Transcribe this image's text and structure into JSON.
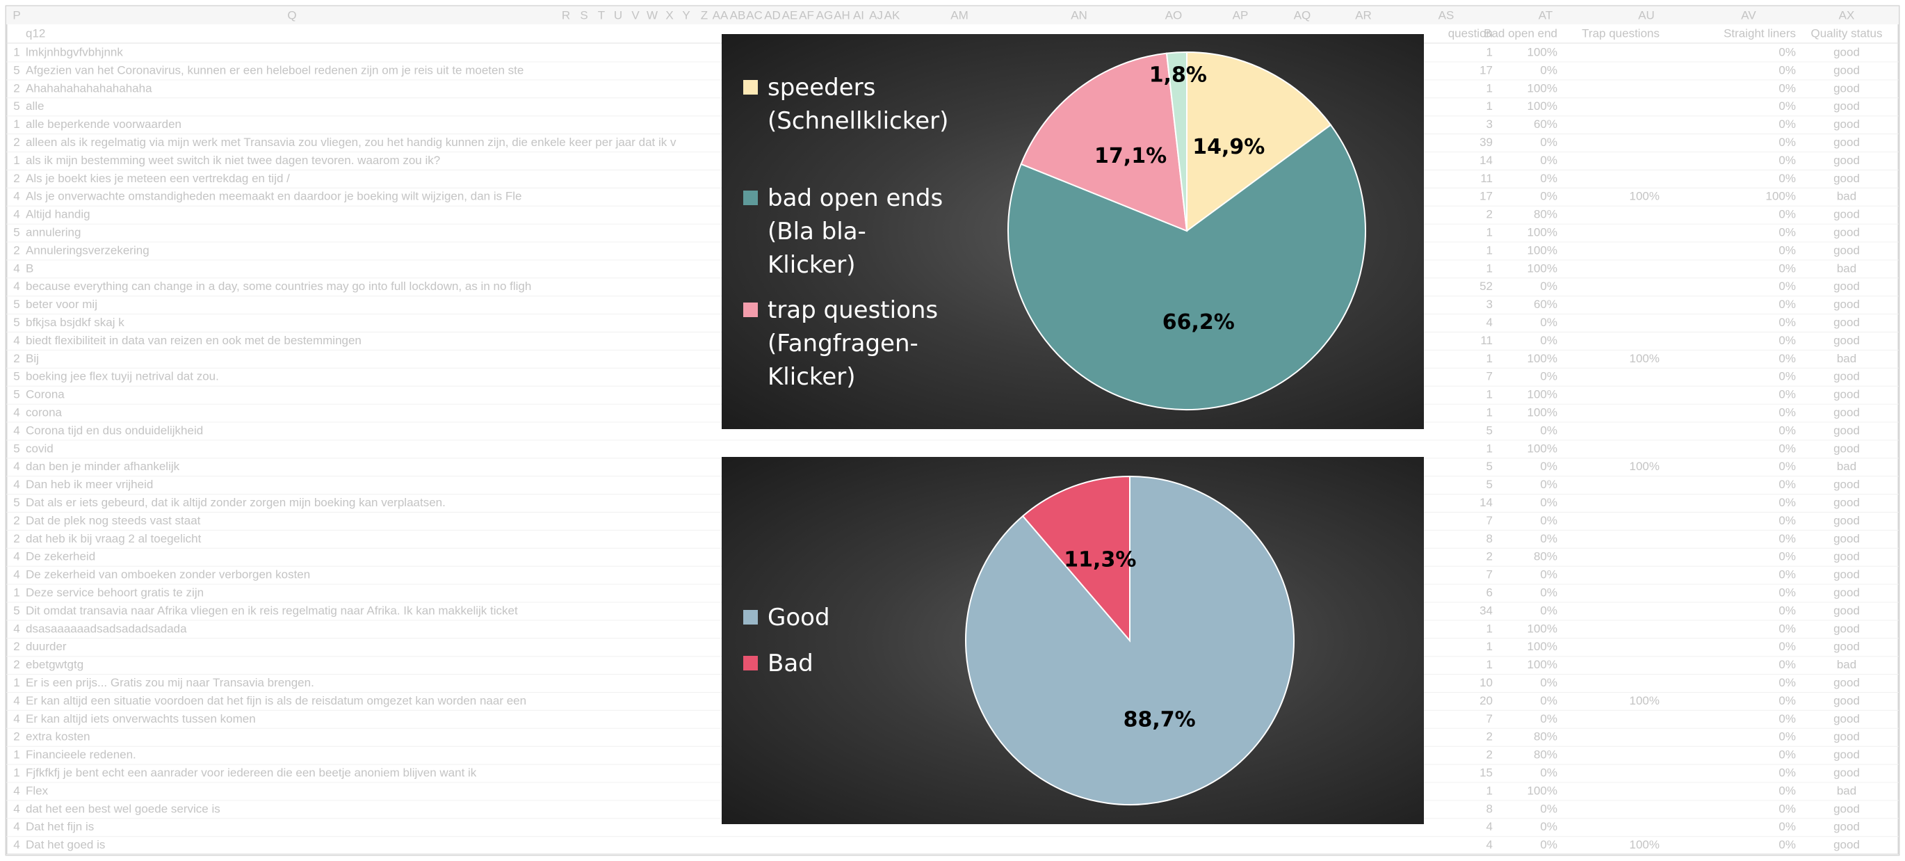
{
  "spreadsheet": {
    "column_letters": [
      "P",
      "Q",
      "R",
      "S",
      "T",
      "U",
      "V",
      "W",
      "X",
      "Y",
      "Z",
      "AA",
      "AB",
      "AC",
      "AD",
      "AE",
      "AF",
      "AG",
      "AH",
      "AI",
      "AJ",
      "AK",
      "AM",
      "AN",
      "AO",
      "AP",
      "AQ",
      "AR",
      "AS",
      "AT",
      "AU",
      "AV",
      "AX"
    ],
    "headers": [
      "q12",
      "question",
      "Bad open end",
      "Trap questions",
      "Straight liners",
      "Quality status"
    ],
    "rows": [
      [
        1,
        "lmkjnhbgvfvbhjnnk",
        1,
        "100%",
        null,
        "0%",
        "good"
      ],
      [
        5,
        "Afgezien van het Coronavirus, kunnen er een heleboel redenen zijn om je reis uit te moeten ste",
        17,
        "0%",
        null,
        "0%",
        "good"
      ],
      [
        2,
        "Ahahahahahahahahaha",
        1,
        "100%",
        null,
        "0%",
        "good"
      ],
      [
        5,
        "alle",
        1,
        "100%",
        null,
        "0%",
        "good"
      ],
      [
        1,
        "alle beperkende voorwaarden",
        3,
        "60%",
        null,
        "0%",
        "good"
      ],
      [
        2,
        "alleen als ik regelmatig via mijn werk met Transavia zou vliegen, zou het handig kunnen zijn, die enkele keer per jaar dat ik v",
        39,
        "0%",
        null,
        "0%",
        "good"
      ],
      [
        1,
        "als ik mijn bestemming weet switch ik niet twee dagen tevoren. waarom zou ik?",
        14,
        "0%",
        null,
        "0%",
        "good"
      ],
      [
        2,
        "Als je boekt kies je meteen een vertrekdag en tijd /",
        11,
        "0%",
        null,
        "0%",
        "good"
      ],
      [
        4,
        "Als je onverwachte omstandigheden meemaakt en daardoor je boeking wilt wijzigen, dan is Fle",
        17,
        "0%",
        "100%",
        "100%",
        "bad"
      ],
      [
        4,
        "Altijd handig",
        2,
        "80%",
        null,
        "0%",
        "good"
      ],
      [
        5,
        "annulering",
        1,
        "100%",
        null,
        "0%",
        "good"
      ],
      [
        2,
        "Annuleringsverzekering",
        1,
        "100%",
        null,
        "0%",
        "good"
      ],
      [
        4,
        "B",
        1,
        "100%",
        null,
        "0%",
        "bad"
      ],
      [
        4,
        "because everything can change in a day, some countries may go into full lockdown, as in no fligh",
        52,
        "0%",
        null,
        "0%",
        "good"
      ],
      [
        5,
        "beter voor mij",
        3,
        "60%",
        null,
        "0%",
        "good"
      ],
      [
        5,
        "bfkjsa bsjdkf skaj k",
        4,
        "0%",
        null,
        "0%",
        "good"
      ],
      [
        4,
        "biedt flexibiliteit in data van reizen en ook met de bestemmingen",
        11,
        "0%",
        null,
        "0%",
        "good"
      ],
      [
        2,
        "Bij",
        1,
        "100%",
        "100%",
        "0%",
        "bad"
      ],
      [
        5,
        "boeking jee flex tuyij netrival dat zou.",
        7,
        "0%",
        null,
        "0%",
        "good"
      ],
      [
        5,
        "Corona",
        1,
        "100%",
        null,
        "0%",
        "good"
      ],
      [
        4,
        "corona",
        1,
        "100%",
        null,
        "0%",
        "good"
      ],
      [
        4,
        "Corona tijd en dus onduidelijkheid",
        5,
        "0%",
        null,
        "0%",
        "good"
      ],
      [
        5,
        "covid",
        1,
        "100%",
        null,
        "0%",
        "good"
      ],
      [
        4,
        "dan ben je minder afhankelijk",
        5,
        "0%",
        "100%",
        "0%",
        "bad"
      ],
      [
        4,
        "Dan heb ik meer vrijheid",
        5,
        "0%",
        null,
        "0%",
        "good"
      ],
      [
        5,
        "Dat als er iets gebeurd, dat ik altijd zonder zorgen mijn boeking kan verplaatsen.",
        14,
        "0%",
        null,
        "0%",
        "good"
      ],
      [
        2,
        "Dat de plek nog steeds vast staat",
        7,
        "0%",
        null,
        "0%",
        "good"
      ],
      [
        2,
        "dat heb ik bij vraag 2 al toegelicht",
        8,
        "0%",
        null,
        "0%",
        "good"
      ],
      [
        4,
        "De zekerheid",
        2,
        "80%",
        null,
        "0%",
        "good"
      ],
      [
        4,
        "De zekerheid van omboeken zonder verborgen kosten",
        7,
        "0%",
        null,
        "0%",
        "good"
      ],
      [
        1,
        "Deze service behoort gratis te zijn",
        6,
        "0%",
        null,
        "0%",
        "good"
      ],
      [
        5,
        "Dit omdat transavia naar Afrika vliegen en ik reis regelmatig naar Afrika.  Ik kan makkelijk ticket",
        34,
        "0%",
        null,
        "0%",
        "good"
      ],
      [
        4,
        "dsasaaaaaadsadsadadsadada",
        1,
        "100%",
        null,
        "0%",
        "good"
      ],
      [
        2,
        "duurder",
        1,
        "100%",
        null,
        "0%",
        "good"
      ],
      [
        2,
        "ebetgwtgtg",
        1,
        "100%",
        null,
        "0%",
        "bad"
      ],
      [
        1,
        "Er is een prijs... Gratis zou mij naar Transavia brengen.",
        10,
        "0%",
        null,
        "0%",
        "good"
      ],
      [
        4,
        "Er kan altijd een situatie voordoen dat het fijn is als de reisdatum omgezet kan worden naar een",
        20,
        "0%",
        "100%",
        "0%",
        "good"
      ],
      [
        4,
        "Er kan altijd iets onverwachts tussen komen",
        7,
        "0%",
        null,
        "0%",
        "good"
      ],
      [
        2,
        "extra kosten",
        2,
        "80%",
        null,
        "0%",
        "good"
      ],
      [
        1,
        "Financieele redenen.",
        2,
        "80%",
        null,
        "0%",
        "good"
      ],
      [
        1,
        "Fjfkfkfj je bent echt een aanrader voor iedereen die een beetje anoniem blijven want ik",
        15,
        "0%",
        null,
        "0%",
        "good"
      ],
      [
        4,
        "Flex",
        1,
        "100%",
        null,
        "0%",
        "bad"
      ],
      [
        4,
        "dat het een best wel goede service is",
        8,
        "0%",
        null,
        "0%",
        "good"
      ],
      [
        4,
        "Dat het fijn is",
        4,
        "0%",
        null,
        "0%",
        "good"
      ],
      [
        4,
        "Dat het goed is",
        4,
        "0%",
        "100%",
        "0%",
        "good"
      ]
    ]
  },
  "chart_data": [
    {
      "type": "pie",
      "categories": [
        "speeders (Schnellklicker)",
        "bad open ends (Bla bla-Klicker)",
        "trap questions (Fangfragen-Klicker)",
        null
      ],
      "values": [
        14.9,
        66.2,
        17.1,
        1.8
      ],
      "value_labels": [
        "14,9%",
        "66,2%",
        "17,1%",
        "1,8%"
      ],
      "colors": [
        "#fde9b6",
        "#5f9a9a",
        "#f39dac",
        "#c4e8d6"
      ]
    },
    {
      "type": "pie",
      "categories": [
        "Good",
        "Bad"
      ],
      "values": [
        88.7,
        11.3
      ],
      "value_labels": [
        "88,7%",
        "11,3%"
      ],
      "colors": [
        "#9ab7c7",
        "#e8546f"
      ]
    }
  ]
}
